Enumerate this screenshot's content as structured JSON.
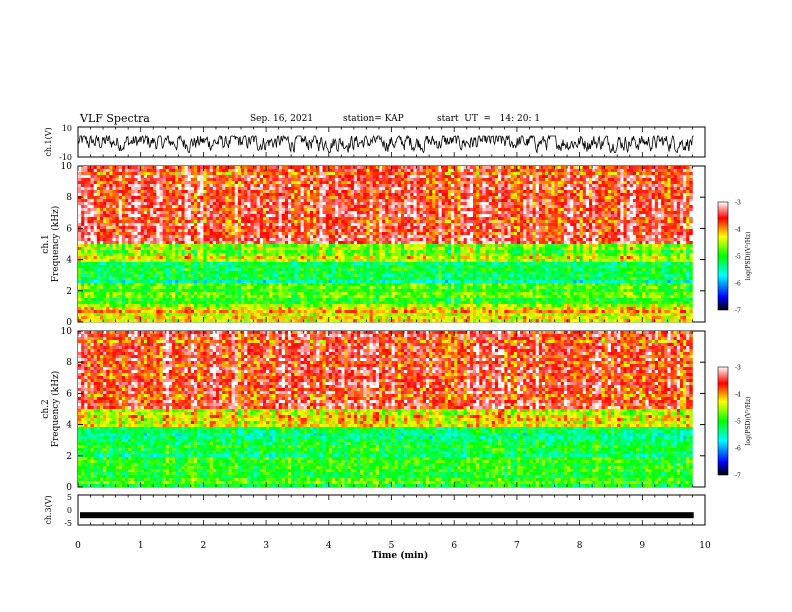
{
  "header": {
    "title": "VLF Spectra",
    "date": "Sep. 16, 2021",
    "station": "station= KAP",
    "start": "start  UT  =   14: 20: 1"
  },
  "chart_data": [
    {
      "type": "line",
      "panel": "ch1-waveform",
      "ylabel": "ch.1(V)",
      "ylim": [
        -10,
        10
      ],
      "ytick_labels": [
        "10",
        "-10"
      ],
      "xlim": [
        0,
        10
      ],
      "series": [
        {
          "values_range": [
            -7,
            4
          ],
          "mean": 0
        }
      ]
    },
    {
      "type": "heatmap",
      "panel": "ch1-spectrogram",
      "ylabel": "ch.1\nFrequency (kHz)",
      "ylim": [
        0,
        10
      ],
      "ytick_labels": [
        "0",
        "2",
        "4",
        "6",
        "8",
        "10"
      ],
      "xlim": [
        0,
        9.8
      ],
      "colorbar": {
        "label": "log(PSD)(V²/Hz)",
        "range": [
          -7,
          -3
        ],
        "tick_labels": [
          "-3",
          "-4",
          "-5",
          "-6",
          "-7"
        ]
      },
      "bands_kHz": [
        {
          "from": 0,
          "to": 1,
          "level": -4.2
        },
        {
          "from": 1,
          "to": 2.5,
          "level": -4.8
        },
        {
          "from": 2.5,
          "to": 3.8,
          "level": -5.3
        },
        {
          "from": 3.8,
          "to": 5,
          "level": -4.6
        },
        {
          "from": 5,
          "to": 10,
          "level": -3.6
        }
      ]
    },
    {
      "type": "heatmap",
      "panel": "ch2-spectrogram",
      "ylabel": "ch.2\nFrequency (kHz)",
      "ylim": [
        0,
        10
      ],
      "ytick_labels": [
        "0",
        "2",
        "4",
        "6",
        "8",
        "10"
      ],
      "xlim": [
        0,
        9.8
      ],
      "colorbar": {
        "label": "log(PSD)(V²/Hz)",
        "range": [
          -7,
          -3
        ],
        "tick_labels": [
          "-3",
          "-4",
          "-5",
          "-6",
          "-7"
        ]
      },
      "bands_kHz": [
        {
          "from": 0,
          "to": 1.2,
          "level": -4.9
        },
        {
          "from": 1.2,
          "to": 2.5,
          "level": -5.1
        },
        {
          "from": 2.5,
          "to": 3.8,
          "level": -5.2
        },
        {
          "from": 3.8,
          "to": 5,
          "level": -4.3
        },
        {
          "from": 5,
          "to": 10,
          "level": -3.6
        }
      ]
    },
    {
      "type": "line",
      "panel": "ch3-waveform",
      "ylabel": "ch.3(V)",
      "ylim": [
        -5,
        5
      ],
      "ytick_labels": [
        "5",
        "0",
        "-5"
      ],
      "xlim": [
        0,
        10
      ],
      "series": [
        {
          "constant": -2
        }
      ]
    }
  ],
  "xaxis": {
    "label": "Time  (min)",
    "ticks": [
      "0",
      "1",
      "2",
      "3",
      "4",
      "5",
      "6",
      "7",
      "8",
      "9",
      "10"
    ]
  },
  "colors": {
    "line": "#000000",
    "colormap": [
      "#000000",
      "#0000ff",
      "#00ffff",
      "#00ff00",
      "#ffff00",
      "#ff0000",
      "#ffffff"
    ]
  }
}
